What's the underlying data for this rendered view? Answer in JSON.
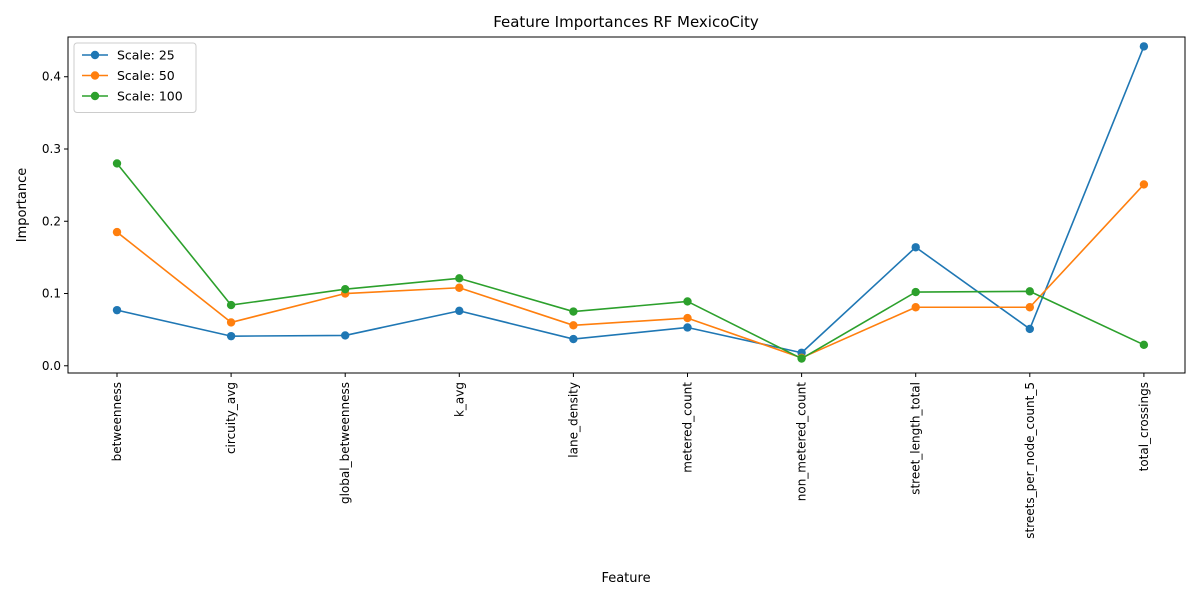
{
  "chart_data": {
    "type": "line",
    "title": "Feature Importances RF MexicoCity",
    "xlabel": "Feature",
    "ylabel": "Importance",
    "categories": [
      "betweenness",
      "circuity_avg",
      "global_betweenness",
      "k_avg",
      "lane_density",
      "metered_count",
      "non_metered_count",
      "street_length_total",
      "streets_per_node_count_5",
      "total_crossings"
    ],
    "ylim": [
      -0.01,
      0.455
    ],
    "yticks": [
      "0.0",
      "0.1",
      "0.2",
      "0.3",
      "0.4"
    ],
    "grid": false,
    "legend_position": "top-left",
    "series": [
      {
        "name": "Scale: 25",
        "color": "#1f77b4",
        "values": [
          0.077,
          0.041,
          0.042,
          0.076,
          0.037,
          0.053,
          0.018,
          0.164,
          0.051,
          0.442
        ]
      },
      {
        "name": "Scale: 50",
        "color": "#ff7f0e",
        "values": [
          0.185,
          0.06,
          0.1,
          0.108,
          0.056,
          0.066,
          0.011,
          0.081,
          0.081,
          0.251
        ]
      },
      {
        "name": "Scale: 100",
        "color": "#2ca02c",
        "values": [
          0.28,
          0.084,
          0.106,
          0.121,
          0.075,
          0.089,
          0.01,
          0.102,
          0.103,
          0.029
        ]
      }
    ]
  }
}
